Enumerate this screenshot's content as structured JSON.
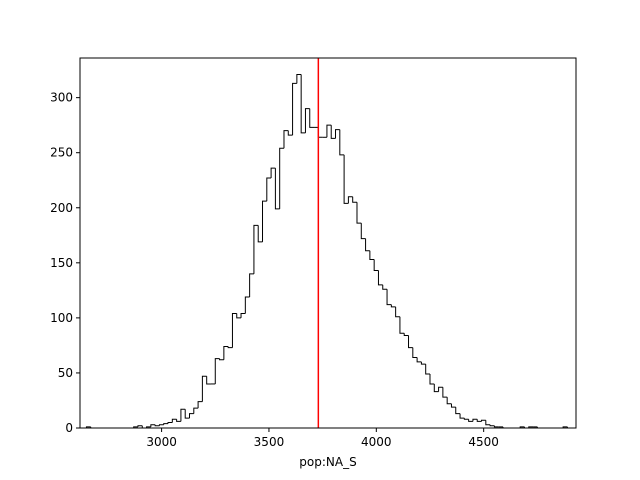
{
  "chart_data": {
    "type": "histogram",
    "title": "",
    "xlabel": "pop:NA_S",
    "ylabel": "",
    "xlim": [
      2620,
      4930
    ],
    "ylim": [
      0,
      336
    ],
    "grid": false,
    "xticks": [
      3000,
      3500,
      4000,
      4500
    ],
    "yticks": [
      0,
      50,
      100,
      150,
      200,
      250,
      300
    ],
    "series": [
      {
        "style": "step",
        "color": "#000000",
        "bin_start": 2650,
        "bin_width": 20,
        "counts": [
          1,
          0,
          0,
          0,
          0,
          0,
          0,
          0,
          0,
          0,
          0,
          1,
          2,
          0,
          1,
          3,
          2,
          3,
          4,
          5,
          8,
          6,
          17,
          9,
          13,
          18,
          24,
          47,
          40,
          40,
          63,
          62,
          74,
          73,
          104,
          100,
          104,
          119,
          140,
          184,
          169,
          206,
          227,
          236,
          199,
          254,
          270,
          266,
          313,
          321,
          268,
          290,
          273,
          273,
          264,
          264,
          275,
          263,
          271,
          248,
          204,
          210,
          205,
          186,
          172,
          161,
          153,
          143,
          130,
          126,
          112,
          110,
          101,
          86,
          84,
          73,
          64,
          60,
          58,
          49,
          40,
          33,
          37,
          28,
          22,
          19,
          13,
          9,
          8,
          6,
          8,
          6,
          7,
          3,
          2,
          1,
          1,
          0,
          0,
          0,
          0,
          1,
          0,
          1,
          1,
          0,
          0,
          0,
          0,
          0,
          0,
          1,
          0
        ]
      }
    ],
    "reference_line": {
      "x": 3730,
      "color": "#ff0000"
    }
  }
}
